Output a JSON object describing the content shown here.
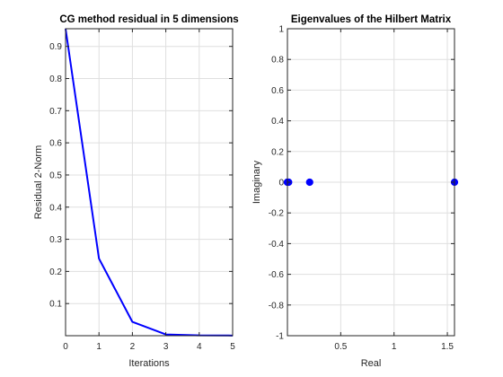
{
  "chart_data": [
    {
      "type": "line",
      "title": "CG method residual in 5 dimensions",
      "xlabel": "Iterations",
      "ylabel": "Residual 2-Norm",
      "xlim": [
        0,
        5
      ],
      "ylim": [
        0,
        0.955
      ],
      "grid": true,
      "xticks": [
        "0",
        "1",
        "2",
        "3",
        "4",
        "5"
      ],
      "yticks": [
        "0.1",
        "0.2",
        "0.3",
        "0.4",
        "0.5",
        "0.6",
        "0.7",
        "0.8",
        "0.9"
      ],
      "color": "#0000ff",
      "series": [
        {
          "x": [
            0,
            1,
            2,
            3,
            4,
            5
          ],
          "values": [
            0.955,
            0.24,
            0.043,
            0.004,
            0.001,
            0.0005
          ]
        }
      ]
    },
    {
      "type": "scatter",
      "title": "Eigenvalues of the Hilbert Matrix",
      "xlabel": "Real",
      "ylabel": "Imaginary",
      "xlim": [
        0,
        1.567
      ],
      "ylim": [
        -1,
        1
      ],
      "grid": true,
      "xticks": [
        "0.5",
        "1",
        "1.5"
      ],
      "yticks": [
        "-1",
        "-0.8",
        "-0.6",
        "-0.4",
        "-0.2",
        "0",
        "0.2",
        "0.4",
        "0.6",
        "0.8",
        "1"
      ],
      "color": "#0000ff",
      "series": [
        {
          "x": [
            3.2e-06,
            0.000306,
            0.0114,
            0.2085,
            1.567
          ],
          "values": [
            0,
            0,
            0,
            0,
            0
          ]
        }
      ]
    }
  ]
}
